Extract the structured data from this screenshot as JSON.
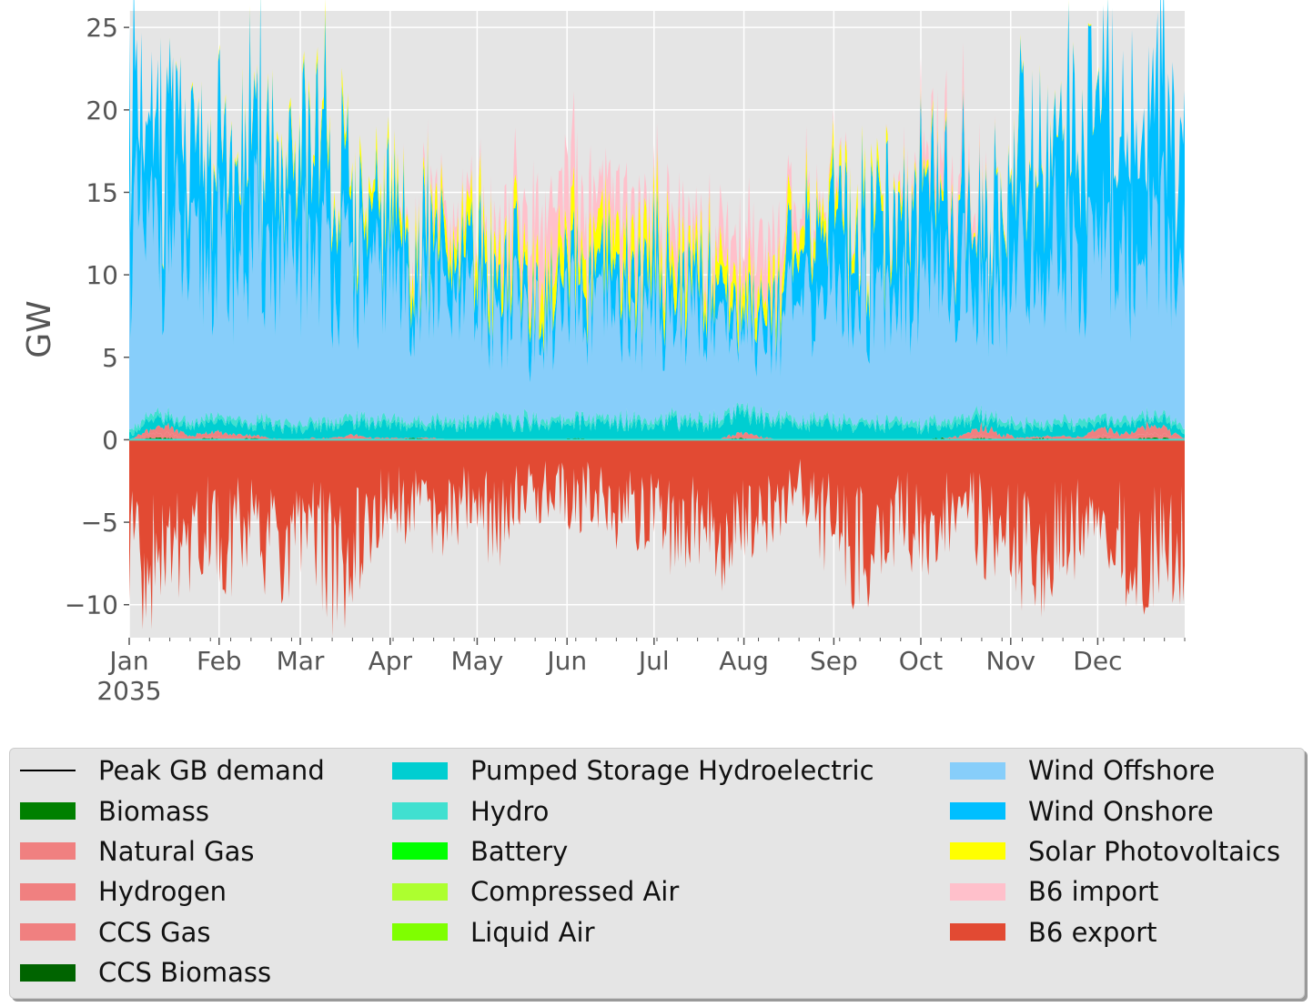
{
  "chart_data": {
    "type": "area",
    "xlabel": "",
    "ylabel": "GW",
    "x_range": [
      "2035-01-01",
      "2035-12-31"
    ],
    "ylim": [
      -12,
      26
    ],
    "yticks": [
      25,
      20,
      15,
      10,
      5,
      0,
      -5,
      -10
    ],
    "ytick_labels": [
      "25",
      "20",
      "15",
      "10",
      "5",
      "0",
      "−5",
      "−10"
    ],
    "xticks": [
      {
        "date": "2035-01-01",
        "label": "Jan",
        "sublabel": "2035"
      },
      {
        "date": "2035-02-01",
        "label": "Feb"
      },
      {
        "date": "2035-03-01",
        "label": "Mar"
      },
      {
        "date": "2035-04-01",
        "label": "Apr"
      },
      {
        "date": "2035-05-01",
        "label": "May"
      },
      {
        "date": "2035-06-01",
        "label": "Jun"
      },
      {
        "date": "2035-07-01",
        "label": "Jul"
      },
      {
        "date": "2035-08-01",
        "label": "Aug"
      },
      {
        "date": "2035-09-01",
        "label": "Sep"
      },
      {
        "date": "2035-10-01",
        "label": "Oct"
      },
      {
        "date": "2035-11-01",
        "label": "Nov"
      },
      {
        "date": "2035-12-01",
        "label": "Dec"
      }
    ],
    "grid": true,
    "legend_position": "bottom",
    "weekly_points": [
      "2035-01-01",
      "2035-01-08",
      "2035-01-15",
      "2035-01-22",
      "2035-01-29",
      "2035-02-05",
      "2035-02-12",
      "2035-02-19",
      "2035-02-26",
      "2035-03-05",
      "2035-03-12",
      "2035-03-19",
      "2035-03-26",
      "2035-04-02",
      "2035-04-09",
      "2035-04-16",
      "2035-04-23",
      "2035-04-30",
      "2035-05-07",
      "2035-05-14",
      "2035-05-21",
      "2035-05-28",
      "2035-06-04",
      "2035-06-11",
      "2035-06-18",
      "2035-06-25",
      "2035-07-02",
      "2035-07-09",
      "2035-07-16",
      "2035-07-23",
      "2035-07-30",
      "2035-08-06",
      "2035-08-13",
      "2035-08-20",
      "2035-08-27",
      "2035-09-03",
      "2035-09-10",
      "2035-09-17",
      "2035-09-24",
      "2035-10-01",
      "2035-10-08",
      "2035-10-15",
      "2035-10-22",
      "2035-10-29",
      "2035-11-05",
      "2035-11-12",
      "2035-11-19",
      "2035-11-26",
      "2035-12-03",
      "2035-12-10",
      "2035-12-17",
      "2035-12-24",
      "2035-12-31"
    ],
    "series": [
      {
        "name": "Peak GB demand",
        "color": "#000000",
        "kind": "line"
      },
      {
        "name": "Biomass",
        "color": "#008000",
        "values": [
          0,
          0.1,
          0.1,
          0,
          0.1,
          0,
          0.1,
          0,
          0,
          0,
          0,
          0,
          0,
          0,
          0.1,
          0,
          0,
          0,
          0,
          0,
          0,
          0,
          0.1,
          0,
          0,
          0,
          0,
          0,
          0,
          0,
          0.1,
          0,
          0,
          0,
          0,
          0,
          0,
          0,
          0,
          0,
          0.1,
          0,
          0.1,
          0,
          0,
          0.1,
          0,
          0,
          0.1,
          0,
          0.1,
          0.1,
          0
        ]
      },
      {
        "name": "Natural Gas",
        "color": "#f08080",
        "values": [
          0,
          0.2,
          0.3,
          0,
          0.1,
          0.1,
          0,
          0,
          0,
          0,
          0,
          0.1,
          0,
          0,
          0,
          0,
          0,
          0,
          0,
          0,
          0,
          0,
          0,
          0,
          0,
          0,
          0,
          0,
          0,
          0,
          0,
          0,
          0,
          0,
          0,
          0,
          0,
          0,
          0,
          0,
          0,
          0,
          0.2,
          0,
          0,
          0,
          0,
          0,
          0.2,
          0,
          0.3,
          0.2,
          0
        ]
      },
      {
        "name": "Hydrogen",
        "color": "#f08080",
        "values": [
          0,
          0,
          0,
          0,
          0,
          0,
          0,
          0,
          0,
          0,
          0,
          0,
          0,
          0,
          0,
          0,
          0,
          0,
          0,
          0,
          0,
          0,
          0,
          0,
          0,
          0,
          0,
          0,
          0,
          0,
          0,
          0,
          0,
          0,
          0,
          0,
          0,
          0,
          0,
          0,
          0,
          0,
          0,
          0,
          0,
          0,
          0,
          0,
          0,
          0,
          0,
          0,
          0
        ]
      },
      {
        "name": "CCS Gas",
        "color": "#f08080",
        "values": [
          0,
          0.3,
          0.4,
          0.2,
          0.3,
          0.2,
          0.2,
          0.1,
          0,
          0.1,
          0.1,
          0.2,
          0.1,
          0.1,
          0,
          0.1,
          0,
          0,
          0,
          0,
          0,
          0,
          0,
          0,
          0,
          0,
          0,
          0,
          0,
          0,
          0.3,
          0.2,
          0,
          0,
          0,
          0,
          0,
          0,
          0,
          0,
          0,
          0.2,
          0.5,
          0.3,
          0.1,
          0.1,
          0.2,
          0.2,
          0.4,
          0.3,
          0.5,
          0.4,
          0.1
        ]
      },
      {
        "name": "CCS Biomass",
        "color": "#006400",
        "values": [
          0,
          0,
          0,
          0,
          0,
          0,
          0,
          0,
          0,
          0,
          0,
          0,
          0,
          0,
          0,
          0,
          0,
          0,
          0,
          0,
          0,
          0,
          0,
          0,
          0,
          0,
          0,
          0,
          0,
          0,
          0,
          0,
          0,
          0,
          0,
          0,
          0,
          0,
          0,
          0,
          0,
          0,
          0,
          0,
          0,
          0,
          0,
          0,
          0,
          0,
          0,
          0,
          0
        ]
      },
      {
        "name": "Pumped Storage Hydroelectric",
        "color": "#00ced1",
        "values": [
          0.3,
          0.5,
          0.4,
          0.5,
          0.6,
          0.7,
          0.6,
          0.7,
          0.6,
          0.7,
          0.8,
          0.7,
          0.9,
          0.8,
          0.7,
          0.9,
          0.9,
          0.8,
          1.0,
          0.9,
          1.0,
          0.9,
          1.0,
          0.9,
          1.0,
          1.1,
          1.0,
          1.1,
          0.9,
          1.0,
          1.1,
          1.0,
          1.1,
          0.9,
          1.0,
          0.9,
          0.8,
          0.9,
          0.8,
          0.7,
          0.8,
          0.7,
          0.6,
          0.7,
          0.6,
          0.5,
          0.6,
          0.5,
          0.4,
          0.5,
          0.4,
          0.5,
          0.3
        ]
      },
      {
        "name": "Hydro",
        "color": "#40e0d0",
        "values": [
          0.3,
          0.3,
          0.3,
          0.3,
          0.3,
          0.3,
          0.3,
          0.3,
          0.3,
          0.3,
          0.3,
          0.3,
          0.3,
          0.3,
          0.3,
          0.3,
          0.3,
          0.3,
          0.3,
          0.3,
          0.3,
          0.3,
          0.3,
          0.3,
          0.3,
          0.3,
          0.3,
          0.3,
          0.3,
          0.3,
          0.3,
          0.3,
          0.3,
          0.3,
          0.3,
          0.3,
          0.3,
          0.3,
          0.3,
          0.3,
          0.3,
          0.3,
          0.3,
          0.3,
          0.3,
          0.3,
          0.3,
          0.3,
          0.3,
          0.3,
          0.3,
          0.3,
          0.3
        ]
      },
      {
        "name": "Battery",
        "color": "#00ff00",
        "values": [
          0,
          0,
          0,
          0,
          0,
          0,
          0,
          0,
          0,
          0,
          0,
          0,
          0,
          0,
          0,
          0,
          0,
          0,
          0,
          0,
          0,
          0,
          0,
          0,
          0,
          0,
          0,
          0,
          0,
          0,
          0,
          0,
          0,
          0,
          0,
          0,
          0,
          0,
          0,
          0,
          0,
          0,
          0,
          0,
          0,
          0,
          0,
          0,
          0,
          0,
          0,
          0,
          0
        ]
      },
      {
        "name": "Compressed Air",
        "color": "#adff2f",
        "values": [
          0,
          0,
          0,
          0,
          0,
          0,
          0,
          0,
          0,
          0,
          0,
          0,
          0,
          0,
          0,
          0,
          0,
          0,
          0,
          0,
          0,
          0,
          0,
          0,
          0,
          0,
          0,
          0,
          0,
          0,
          0,
          0,
          0,
          0,
          0,
          0,
          0,
          0,
          0,
          0,
          0,
          0,
          0,
          0,
          0,
          0,
          0,
          0,
          0,
          0,
          0,
          0,
          0
        ]
      },
      {
        "name": "Liquid Air",
        "color": "#7fff00",
        "values": [
          0,
          0,
          0,
          0,
          0,
          0,
          0,
          0,
          0,
          0,
          0,
          0,
          0,
          0,
          0,
          0,
          0,
          0,
          0,
          0,
          0,
          0,
          0,
          0,
          0,
          0,
          0,
          0,
          0,
          0,
          0,
          0,
          0,
          0,
          0,
          0,
          0,
          0,
          0,
          0,
          0,
          0,
          0,
          0,
          0,
          0,
          0,
          0,
          0,
          0,
          0,
          0,
          0
        ]
      },
      {
        "name": "Wind Offshore",
        "color": "#87cefa",
        "values": [
          12,
          10.5,
          11.5,
          9,
          10,
          9.5,
          11,
          10,
          9,
          11,
          10,
          8.5,
          8,
          9,
          7.5,
          8,
          6.5,
          7,
          6,
          7,
          5.5,
          6,
          6.5,
          6,
          6.5,
          6,
          7,
          6,
          6.5,
          6,
          5,
          5.5,
          6,
          6.5,
          7.5,
          8,
          7.5,
          8.5,
          8,
          9,
          8,
          8.5,
          7.5,
          8.5,
          9.5,
          10,
          10.5,
          9.5,
          11,
          10,
          11,
          10.5,
          10
        ]
      },
      {
        "name": "Wind Onshore",
        "color": "#00bfff",
        "values": [
          9,
          6,
          8,
          5,
          6.5,
          5,
          7,
          6,
          5,
          7,
          6,
          4,
          3.5,
          4.5,
          3,
          3.5,
          2.5,
          3,
          2,
          2.5,
          1.5,
          2,
          2.5,
          2,
          2.5,
          2,
          3,
          2,
          2.5,
          2,
          1,
          1.5,
          2,
          3,
          4,
          5,
          4,
          5.5,
          5,
          6,
          4.5,
          5,
          4,
          5,
          7,
          7.5,
          8,
          7,
          8.5,
          7,
          8,
          8.5,
          7
        ]
      },
      {
        "name": "Solar Photovoltaics",
        "color": "#ffff00",
        "values": [
          0,
          0,
          0.1,
          0.1,
          0.2,
          0.2,
          0.3,
          0.3,
          0.4,
          0.5,
          0.6,
          0.7,
          0.8,
          0.9,
          1.0,
          1.1,
          1.3,
          1.4,
          1.5,
          1.6,
          1.7,
          1.7,
          1.8,
          1.8,
          1.8,
          1.8,
          1.7,
          1.7,
          1.6,
          1.6,
          1.5,
          1.4,
          1.3,
          1.2,
          1.1,
          1.0,
          0.9,
          0.8,
          0.7,
          0.6,
          0.5,
          0.4,
          0.3,
          0.3,
          0.2,
          0.2,
          0.1,
          0.1,
          0.1,
          0,
          0,
          0,
          0
        ]
      },
      {
        "name": "B6 import",
        "color": "#ffc0cb",
        "values": [
          0,
          0,
          0,
          0,
          0,
          0,
          0,
          0,
          0,
          0,
          0,
          0,
          0,
          0,
          0.5,
          0.8,
          1.0,
          0.5,
          1.2,
          2.0,
          3.5,
          4.0,
          3.0,
          2.5,
          3.0,
          2.0,
          1.5,
          2.0,
          1.0,
          1.5,
          2.5,
          3.0,
          2.0,
          1.0,
          0.5,
          0.5,
          0,
          0,
          0.5,
          1.0,
          1.5,
          2.0,
          0.5,
          0,
          0,
          0,
          0,
          0,
          0,
          0,
          0,
          0,
          0
        ]
      },
      {
        "name": "B6 export",
        "color": "#e24a33",
        "values": [
          -7,
          -8.5,
          -6.5,
          -7.5,
          -6,
          -6.5,
          -5.5,
          -7,
          -6.5,
          -6,
          -8,
          -7.5,
          -5,
          -4,
          -4.5,
          -5,
          -5.5,
          -3.5,
          -6,
          -4,
          -3.5,
          -3,
          -4,
          -3.5,
          -4.5,
          -5,
          -6,
          -5.5,
          -5,
          -6.5,
          -5,
          -5.5,
          -4,
          -3,
          -5,
          -6.5,
          -7.5,
          -6,
          -5,
          -6,
          -5,
          -4,
          -5.5,
          -6.5,
          -7,
          -7.5,
          -6,
          -5.5,
          -6,
          -7,
          -8,
          -6.5,
          -7
        ]
      }
    ]
  }
}
